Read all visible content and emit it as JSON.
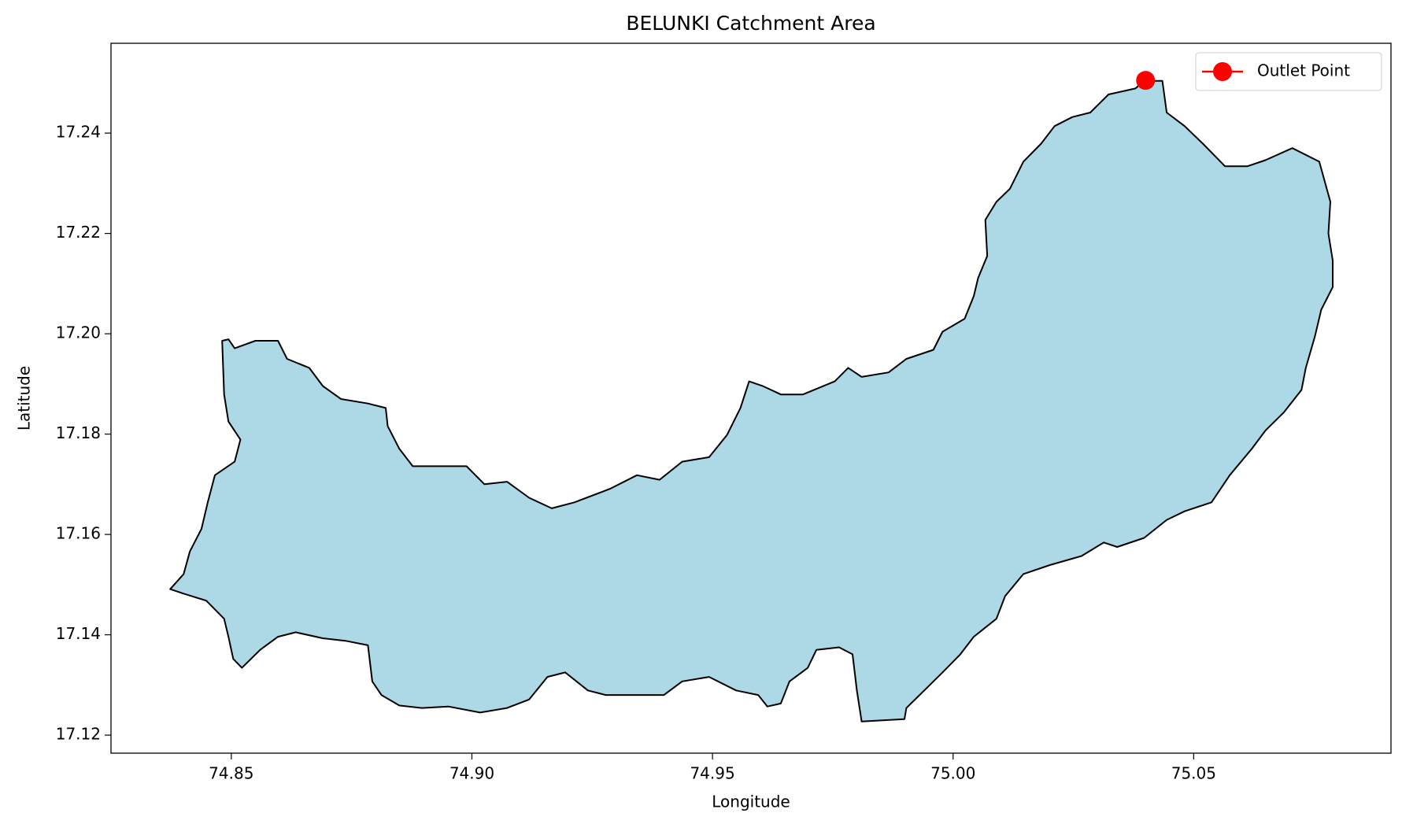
{
  "chart_data": {
    "type": "map",
    "title": "BELUNKI Catchment Area",
    "x_label": "Longitude",
    "y_label": "Latitude",
    "xlim": [
      74.825,
      75.091
    ],
    "ylim": [
      17.1164,
      17.2579
    ],
    "xticks": [
      74.85,
      {
        "value": 74.9,
        "label": "74.90"
      },
      74.95,
      {
        "value": 75,
        "label": "75.00"
      },
      75.05
    ],
    "yticks": [
      17.12,
      17.14,
      17.16,
      17.18,
      {
        "value": 17.2,
        "label": "17.20"
      },
      17.22,
      17.24
    ],
    "grid": false,
    "legend": "upper right",
    "series": [
      {
        "type": "polygon",
        "color": "#add8e6",
        "edgecolor": "#000000",
        "x": [
          74.8373,
          74.8401,
          74.8414,
          74.8438,
          74.8451,
          74.8466,
          74.8507,
          74.8519,
          74.8494,
          74.8485,
          74.8481,
          74.8494,
          74.8507,
          74.855,
          74.8597,
          74.8616,
          74.8662,
          74.869,
          74.8728,
          74.8784,
          74.8821,
          74.8825,
          74.8849,
          74.8877,
          74.8933,
          74.8989,
          74.9026,
          74.9073,
          74.9119,
          74.9166,
          74.9213,
          74.9287,
          74.9343,
          74.939,
          74.9437,
          74.9493,
          74.953,
          74.9558,
          74.9576,
          74.9604,
          74.9642,
          74.9688,
          74.9754,
          74.9782,
          74.981,
          74.9866,
          74.9903,
          74.9959,
          74.9978,
          75.0024,
          75.0043,
          75.0052,
          75.0071,
          75.0067,
          75.009,
          75.0118,
          75.0146,
          75.0183,
          75.0211,
          75.0248,
          75.0285,
          75.0323,
          75.0379,
          75.0397,
          75.0435,
          75.0444,
          75.0481,
          75.0519,
          75.0565,
          75.0612,
          75.0649,
          75.0705,
          75.0761,
          75.0784,
          75.078,
          75.0789,
          75.0789,
          75.0765,
          75.0752,
          75.0733,
          75.0724,
          75.0687,
          75.0649,
          75.0621,
          75.0575,
          75.0537,
          75.0481,
          75.0444,
          75.0397,
          75.0341,
          75.0313,
          75.0267,
          75.0201,
          75.0146,
          75.0108,
          75.009,
          75.0043,
          75.0015,
          74.9978,
          74.994,
          74.9903,
          74.9899,
          74.981,
          74.98,
          74.9791,
          74.9763,
          74.9716,
          74.9698,
          74.966,
          74.9642,
          74.9614,
          74.9595,
          74.9549,
          74.9493,
          74.9437,
          74.9399,
          74.9334,
          74.9278,
          74.9241,
          74.9194,
          74.9157,
          74.9119,
          74.9073,
          74.9017,
          74.8951,
          74.8896,
          74.8849,
          74.8812,
          74.8793,
          74.8784,
          74.8737,
          74.869,
          74.8634,
          74.8597,
          74.856,
          74.8522,
          74.8504,
          74.8494,
          74.8485,
          74.8448,
          74.8401
        ],
        "y": [
          17.1491,
          17.1521,
          17.1566,
          17.1611,
          17.1664,
          17.1718,
          17.1745,
          17.1789,
          17.1825,
          17.1879,
          17.1986,
          17.1989,
          17.1971,
          17.1986,
          17.1986,
          17.195,
          17.1932,
          17.1896,
          17.187,
          17.1861,
          17.1852,
          17.1816,
          17.1771,
          17.1736,
          17.1736,
          17.1736,
          17.17,
          17.1705,
          17.1673,
          17.1652,
          17.1664,
          17.1691,
          17.1718,
          17.1709,
          17.1745,
          17.1754,
          17.1798,
          17.1852,
          17.1905,
          17.1896,
          17.1879,
          17.1879,
          17.1905,
          17.1932,
          17.1914,
          17.1923,
          17.195,
          17.1968,
          17.2004,
          17.203,
          17.2075,
          17.2111,
          17.2155,
          17.2227,
          17.2263,
          17.2289,
          17.2343,
          17.2379,
          17.2414,
          17.2432,
          17.2441,
          17.2477,
          17.2489,
          17.2504,
          17.2504,
          17.2441,
          17.2414,
          17.2379,
          17.2334,
          17.2334,
          17.2346,
          17.237,
          17.2343,
          17.2263,
          17.22,
          17.2146,
          17.2093,
          17.2048,
          17.1995,
          17.1932,
          17.1888,
          17.1843,
          17.1807,
          17.1771,
          17.1718,
          17.1664,
          17.1646,
          17.1629,
          17.1593,
          17.1575,
          17.1584,
          17.1557,
          17.1539,
          17.1521,
          17.1477,
          17.1432,
          17.1396,
          17.1361,
          17.1325,
          17.1289,
          17.1254,
          17.1232,
          17.1227,
          17.1289,
          17.1361,
          17.1375,
          17.137,
          17.1334,
          17.1307,
          17.1263,
          17.1257,
          17.128,
          17.1289,
          17.1316,
          17.1307,
          17.128,
          17.128,
          17.128,
          17.1289,
          17.1325,
          17.1316,
          17.1271,
          17.1254,
          17.1245,
          17.1257,
          17.1254,
          17.1259,
          17.128,
          17.1307,
          17.1379,
          17.1388,
          17.1393,
          17.1405,
          17.1396,
          17.137,
          17.1334,
          17.1352,
          17.1396,
          17.1432,
          17.1468,
          17.1482
        ]
      },
      {
        "type": "marker",
        "name": "Outlet Point",
        "color": "#ff0000",
        "x": [
          75.04
        ],
        "y": [
          17.2505
        ]
      }
    ]
  }
}
